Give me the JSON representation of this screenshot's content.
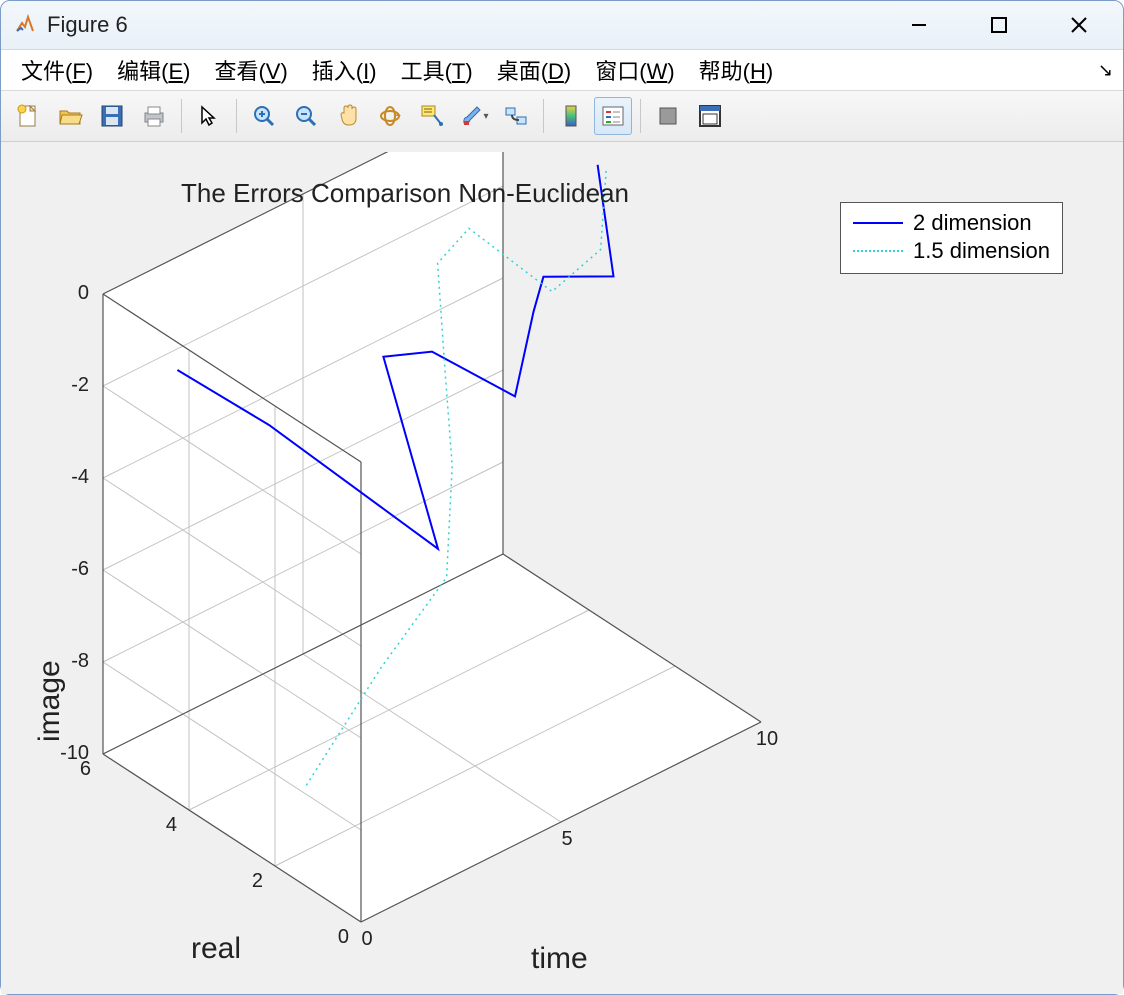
{
  "window": {
    "title": "Figure 6"
  },
  "menu": {
    "items": [
      {
        "label": "文件",
        "mnemonic": "F"
      },
      {
        "label": "编辑",
        "mnemonic": "E"
      },
      {
        "label": "查看",
        "mnemonic": "V"
      },
      {
        "label": "插入",
        "mnemonic": "I"
      },
      {
        "label": "工具",
        "mnemonic": "T"
      },
      {
        "label": "桌面",
        "mnemonic": "D"
      },
      {
        "label": "窗口",
        "mnemonic": "W"
      },
      {
        "label": "帮助",
        "mnemonic": "H"
      }
    ]
  },
  "toolbar": {
    "active_index": 12,
    "names": [
      "new",
      "open",
      "save",
      "print",
      "pointer",
      "zoom-in",
      "zoom-out",
      "pan",
      "rotate-3d",
      "data-cursor",
      "brush",
      "link",
      "colorbar",
      "legend",
      "hide",
      "dock"
    ]
  },
  "chart": {
    "type": "line-3d",
    "title": "The Errors Comparison Non-Euclidean",
    "title_fontsize": 26,
    "background_color": "#f0f0f0",
    "axes_background": "#ffffff",
    "grid_color": "#c2c2c2",
    "axis_line_color": "#555555",
    "text_color": "#222222",
    "x": {
      "label": "time",
      "lim": [
        0,
        10
      ],
      "ticks": [
        0,
        5,
        10
      ]
    },
    "y": {
      "label": "real",
      "lim": [
        0,
        6
      ],
      "ticks": [
        0,
        2,
        4,
        6
      ]
    },
    "z": {
      "label": "image",
      "lim": [
        -10,
        0
      ],
      "ticks": [
        -10,
        -8,
        -6,
        -4,
        -2,
        0
      ]
    },
    "label_fontsize": 30,
    "tick_fontsize": 20,
    "legend": {
      "position": "northeast",
      "items": [
        {
          "label": "2 dimension",
          "color": "#0000ff",
          "style": "solid",
          "width": 2
        },
        {
          "label": "1.5 dimension",
          "color": "#2ad4d4",
          "style": "dotted",
          "width": 1.5
        }
      ]
    },
    "projection": {
      "O": [
        350,
        770
      ],
      "Xu": [
        40,
        -20
      ],
      "Yu": [
        -43,
        -28
      ],
      "Zu": [
        0,
        -46
      ]
    },
    "series": [
      {
        "name": "2 dimension",
        "color": "#0000ff",
        "style": "solid",
        "width": 2,
        "points": [
          {
            "x": 1,
            "y": 5.2,
            "z": -1.6
          },
          {
            "x": 2,
            "y": 4.0,
            "z": -2.5
          },
          {
            "x": 3,
            "y": 1.0,
            "z": -3.8
          },
          {
            "x": 4,
            "y": 3.2,
            "z": -1.4
          },
          {
            "x": 5,
            "y": 3.0,
            "z": -1.6
          },
          {
            "x": 6,
            "y": 2.0,
            "z": -2.4
          },
          {
            "x": 7,
            "y": 2.5,
            "z": -1.3
          },
          {
            "x": 8,
            "y": 3.2,
            "z": -1.4
          },
          {
            "x": 9,
            "y": 2.5,
            "z": -1.4
          },
          {
            "x": 10,
            "y": 3.8,
            "z": -0.2
          }
        ]
      },
      {
        "name": "1.5 dimension",
        "color": "#2ad4d4",
        "style": "dotted",
        "width": 1.5,
        "points": [
          {
            "x": 1,
            "y": 2.2,
            "z": -8.8
          },
          {
            "x": 2,
            "y": 1.4,
            "z": -6.2
          },
          {
            "x": 3,
            "y": 0.8,
            "z": -4.3
          },
          {
            "x": 4,
            "y": 1.6,
            "z": -2.8
          },
          {
            "x": 5,
            "y": 2.7,
            "z": -1.8
          },
          {
            "x": 6,
            "y": 3.8,
            "z": -0.6
          },
          {
            "x": 7,
            "y": 4.0,
            "z": -0.4
          },
          {
            "x": 8,
            "y": 3.0,
            "z": -1.6
          },
          {
            "x": 9,
            "y": 2.8,
            "z": -1.0
          },
          {
            "x": 10,
            "y": 3.6,
            "z": -0.2
          }
        ]
      }
    ]
  }
}
